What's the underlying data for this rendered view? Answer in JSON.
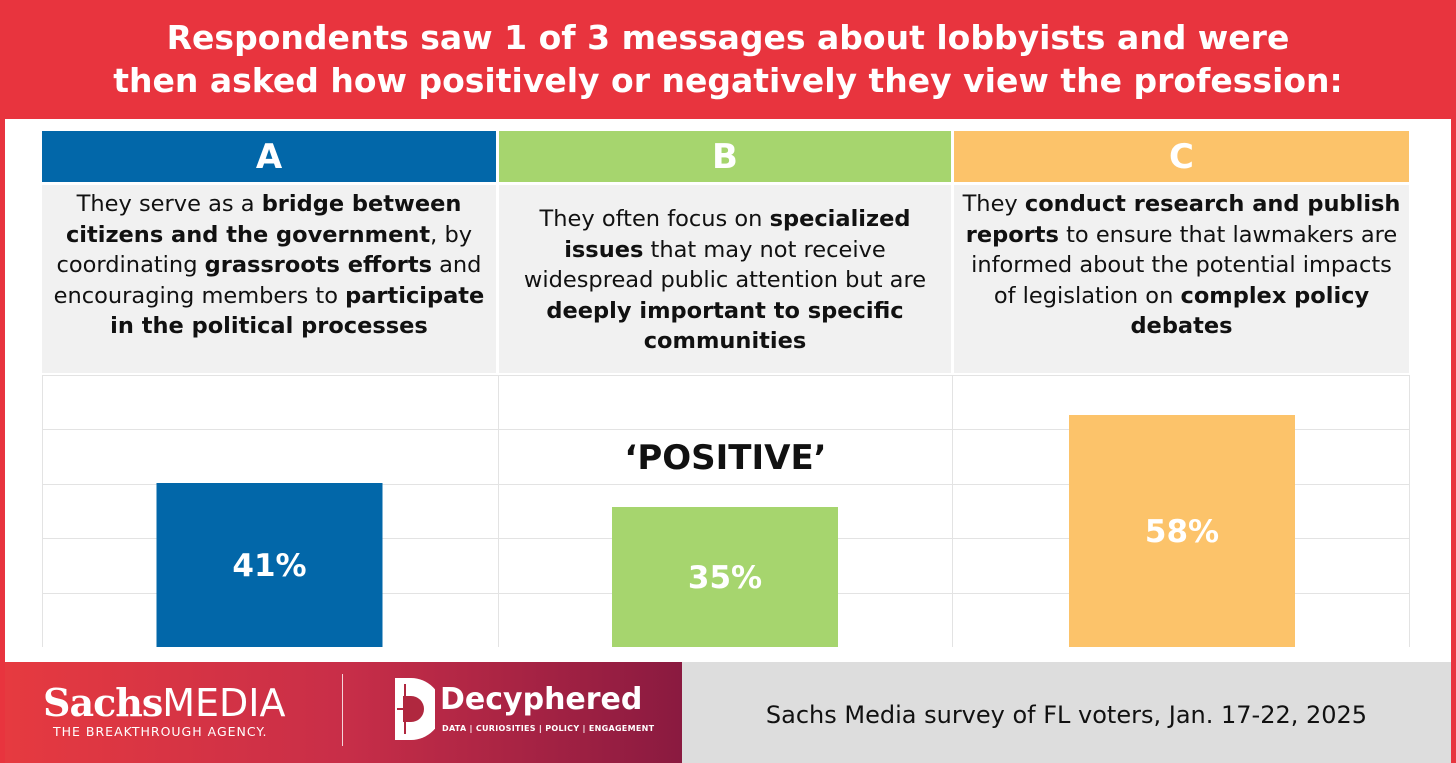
{
  "header": {
    "line1": "Respondents saw 1 of 3 messages about lobbyists and were",
    "line2": "then asked how positively or negatively they view the profession:"
  },
  "colors": {
    "red": "#e8343e",
    "A": "#0267a9",
    "B": "#a6d56e",
    "C": "#fcc36a"
  },
  "messages": [
    {
      "letter": "A",
      "segments": [
        {
          "t": "They serve as a ",
          "b": false
        },
        {
          "t": "bridge between citizens and the government",
          "b": true
        },
        {
          "t": ", by coordinating ",
          "b": false
        },
        {
          "t": "grassroots efforts",
          "b": true
        },
        {
          "t": " and encouraging members to ",
          "b": false
        },
        {
          "t": "participate in the political processes",
          "b": true
        }
      ]
    },
    {
      "letter": "B",
      "segments": [
        {
          "t": "They often focus on ",
          "b": false
        },
        {
          "t": "specialized issues",
          "b": true
        },
        {
          "t": " that may not receive widespread public attention but are ",
          "b": false
        },
        {
          "t": "deeply important to specific communities",
          "b": true
        }
      ]
    },
    {
      "letter": "C",
      "segments": [
        {
          "t": "They ",
          "b": false
        },
        {
          "t": "conduct research and publish reports",
          "b": true
        },
        {
          "t": " to ensure that lawmakers are informed about the potential impacts of legislation on ",
          "b": false
        },
        {
          "t": "complex policy debates",
          "b": true
        }
      ]
    }
  ],
  "chart_data": {
    "type": "bar",
    "title": "'POSITIVE'",
    "categories": [
      "A",
      "B",
      "C"
    ],
    "values": [
      41,
      35,
      58
    ],
    "value_labels": [
      "41%",
      "35%",
      "58%"
    ],
    "ylim": [
      0,
      68
    ],
    "grid": true
  },
  "chart_label": "‘POSITIVE’",
  "footer": {
    "brand1_bold": "Sachs",
    "brand1_light": "MEDIA",
    "brand1_tagline": "THE BREAKTHROUGH AGENCY.",
    "brand2_name": "Decyphered",
    "brand2_tagline": "DATA | CURIOSITIES | POLICY | ENGAGEMENT",
    "source": "Sachs Media survey of FL voters, Jan. 17-22, 2025"
  }
}
